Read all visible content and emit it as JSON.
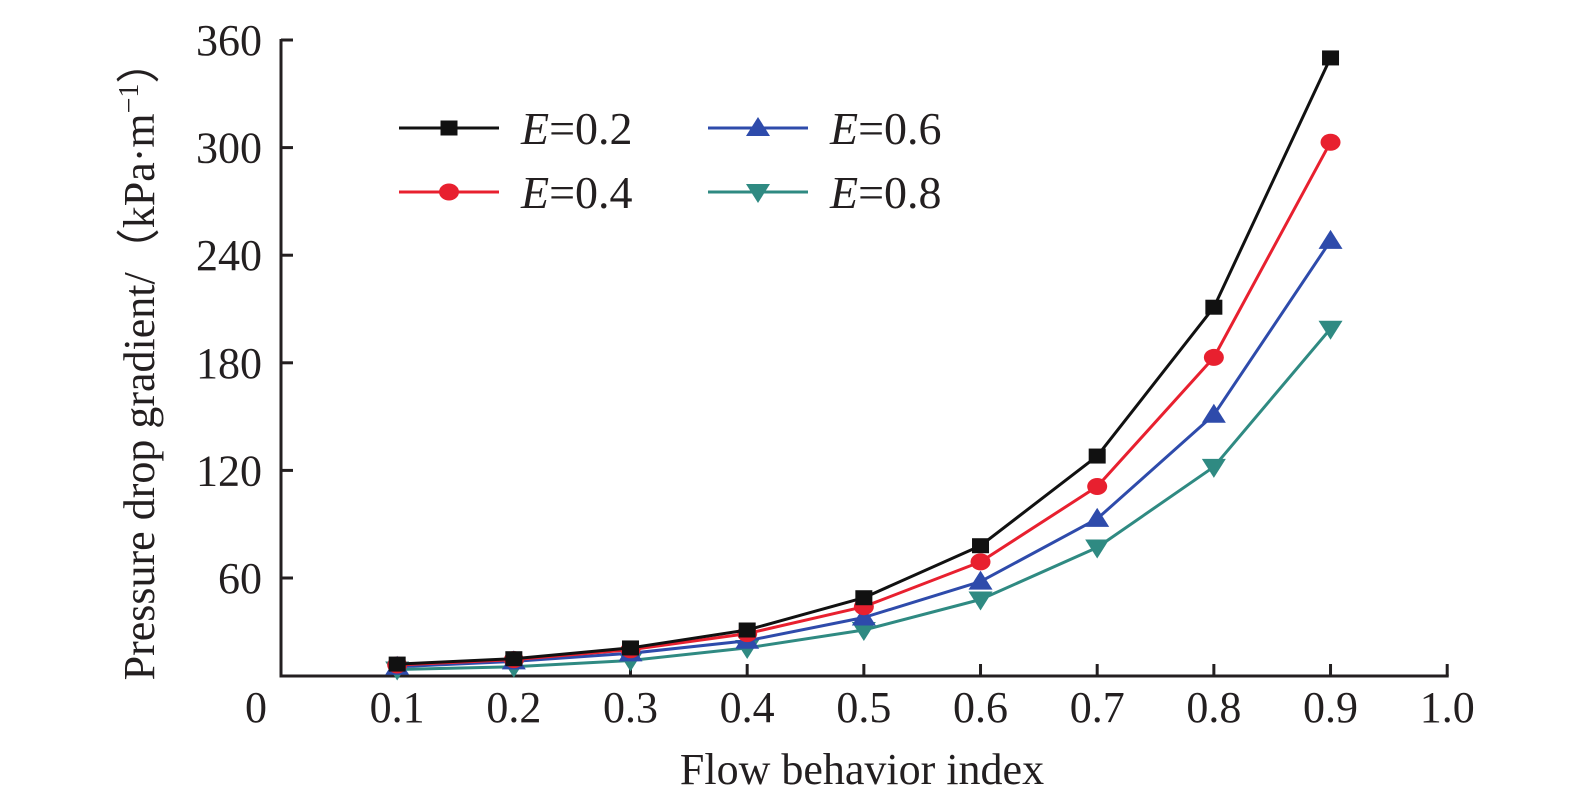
{
  "chart_data": {
    "type": "line",
    "title": "",
    "xlabel": "Flow behavior index",
    "ylabel": "Pressure drop gradient/（kPa·m⁻¹）",
    "ylabel_parts": {
      "main": "Pressure drop gradient/（kPa·m",
      "sup": "−1",
      "end": "）"
    },
    "xlim": [
      0,
      1.0
    ],
    "ylim": [
      5,
      360
    ],
    "origin_label": "0",
    "xticks": [
      0.1,
      0.2,
      0.3,
      0.4,
      0.5,
      0.6,
      0.7,
      0.8,
      0.9,
      1.0
    ],
    "xtick_labels": [
      "0.1",
      "0.2",
      "0.3",
      "0.4",
      "0.5",
      "0.6",
      "0.7",
      "0.8",
      "0.9",
      "1.0"
    ],
    "yticks": [
      60,
      120,
      180,
      240,
      300,
      360
    ],
    "ytick_labels": [
      "60",
      "120",
      "180",
      "240",
      "300",
      "360"
    ],
    "grid": false,
    "legend_position": "top-left",
    "x": [
      0.1,
      0.2,
      0.3,
      0.4,
      0.5,
      0.6,
      0.7,
      0.8,
      0.9
    ],
    "series": [
      {
        "name": "E=0.2",
        "var": "E",
        "val": "=0.2",
        "color": "#111111",
        "marker": "square",
        "values": [
          12,
          15,
          21,
          31,
          49,
          78,
          128,
          211,
          350
        ]
      },
      {
        "name": "E=0.4",
        "var": "E",
        "val": "=0.4",
        "color": "#e8202f",
        "marker": "circle",
        "values": [
          11.5,
          14.5,
          20,
          29,
          44,
          69,
          111,
          183,
          303
        ]
      },
      {
        "name": "E=0.6",
        "var": "E",
        "val": "=0.6",
        "color": "#2e4bab",
        "marker": "triangle-up",
        "values": [
          10.5,
          13.5,
          18,
          25,
          38,
          58,
          93,
          151,
          248
        ]
      },
      {
        "name": "E=0.8",
        "var": "E",
        "val": "=0.8",
        "color": "#2f8a82",
        "marker": "triangle-down",
        "values": [
          9,
          10.5,
          14,
          21,
          31,
          48,
          77,
          122,
          199
        ]
      }
    ]
  }
}
